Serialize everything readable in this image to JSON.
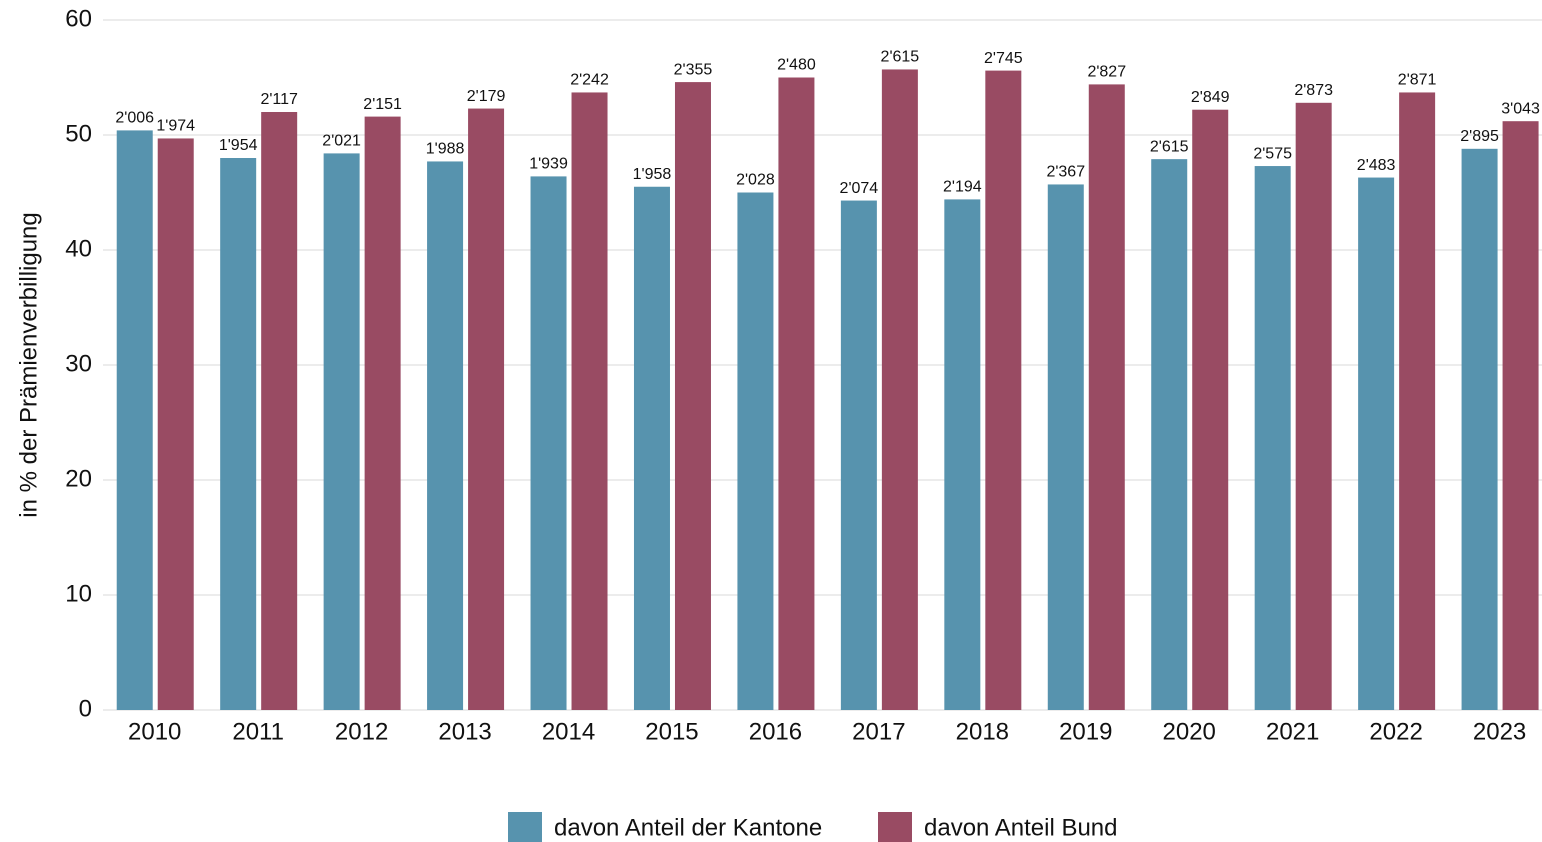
{
  "chart_data": {
    "type": "bar",
    "y_label": "in % der Prämienverbilligung",
    "categories": [
      "2010",
      "2011",
      "2012",
      "2013",
      "2014",
      "2015",
      "2016",
      "2017",
      "2018",
      "2019",
      "2020",
      "2021",
      "2022",
      "2023"
    ],
    "series": [
      {
        "name": "davon Anteil der Kantone",
        "color": "#5793ae",
        "values": [
          50.4,
          48.0,
          48.4,
          47.7,
          46.4,
          45.5,
          45.0,
          44.3,
          44.4,
          45.7,
          47.9,
          47.3,
          46.3,
          48.8
        ],
        "data_labels": [
          "2'006",
          "1'954",
          "2'021",
          "1'988",
          "1'939",
          "1'958",
          "2'028",
          "2'074",
          "2'194",
          "2'367",
          "2'615",
          "2'575",
          "2'483",
          "2'895"
        ]
      },
      {
        "name": "davon Anteil Bund",
        "color": "#994b63",
        "values": [
          49.7,
          52.0,
          51.6,
          52.3,
          53.7,
          54.6,
          55.0,
          55.7,
          55.6,
          54.4,
          52.2,
          52.8,
          53.7,
          51.2
        ],
        "data_labels": [
          "1'974",
          "2'117",
          "2'151",
          "2'179",
          "2'242",
          "2'355",
          "2'480",
          "2'615",
          "2'745",
          "2'827",
          "2'849",
          "2'873",
          "2'871",
          "3'043"
        ]
      }
    ],
    "ylim": [
      0,
      60
    ],
    "yticks": [
      0,
      10,
      20,
      30,
      40,
      50,
      60
    ],
    "grid": true,
    "legend": "bottom"
  }
}
